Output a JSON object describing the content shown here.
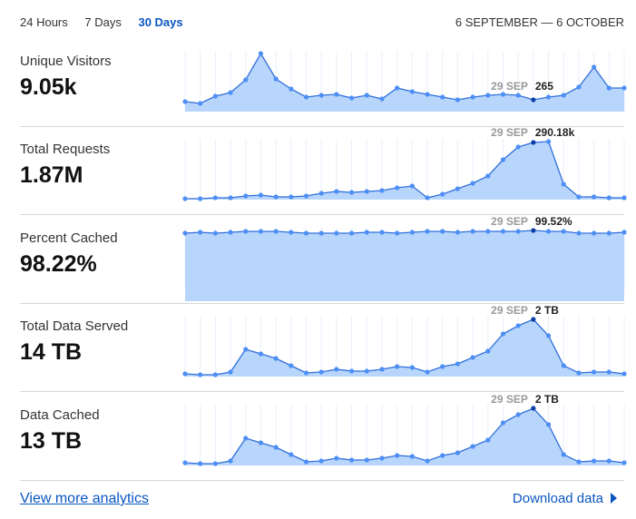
{
  "tabs": [
    {
      "label": "24 Hours"
    },
    {
      "label": "7 Days"
    },
    {
      "label": "30 Days",
      "active": true
    }
  ],
  "date_range": "6 SEPTEMBER — 6 OCTOBER",
  "colors": {
    "accent": "#0a56c2",
    "line": "#2f6fdb",
    "point": "#4d8ff5",
    "fill": "#b8d5fb",
    "highlight": "#0a3fa8"
  },
  "chart_data": [
    {
      "type": "area",
      "title": "Unique Visitors",
      "total": "9.05k",
      "highlight_index": 23,
      "tooltip_date": "29 SEP",
      "tooltip_value": "265",
      "ylim": [
        0,
        70
      ],
      "values": [
        11,
        9,
        17,
        21,
        35,
        64,
        36,
        25,
        16,
        18,
        19,
        15,
        18,
        14,
        26,
        22,
        19,
        16,
        13,
        16,
        18,
        19,
        18,
        13,
        16,
        18,
        27,
        49,
        26,
        26
      ]
    },
    {
      "type": "area",
      "title": "Total Requests",
      "total": "1.87M",
      "highlight_index": 23,
      "tooltip_date": "29 SEP",
      "tooltip_value": "290.18k",
      "ylim": [
        0,
        70
      ],
      "values": [
        1,
        1,
        2,
        2,
        4,
        5,
        3,
        3,
        4,
        7,
        9,
        8,
        9,
        10,
        13,
        15,
        2,
        6,
        12,
        18,
        26,
        44,
        58,
        63,
        64,
        17,
        3,
        3,
        2,
        2
      ]
    },
    {
      "type": "area",
      "title": "Percent Cached",
      "total": "98.22%",
      "highlight_index": 23,
      "tooltip_date": "29 SEP",
      "tooltip_value": "99.52%",
      "ylim": [
        0,
        70
      ],
      "fill_full": true,
      "values": [
        61,
        62,
        61,
        62,
        63,
        63,
        63,
        62,
        61,
        61,
        61,
        61,
        62,
        62,
        61,
        62,
        63,
        63,
        62,
        63,
        63,
        63,
        63,
        64,
        63,
        63,
        61,
        61,
        61,
        62
      ]
    },
    {
      "type": "area",
      "title": "Total Data Served",
      "total": "14 TB",
      "highlight_index": 23,
      "tooltip_date": "29 SEP",
      "tooltip_value": "2 TB",
      "ylim": [
        0,
        70
      ],
      "values": [
        3,
        2,
        2,
        5,
        30,
        25,
        20,
        12,
        4,
        5,
        8,
        6,
        6,
        8,
        11,
        10,
        5,
        11,
        14,
        21,
        28,
        47,
        56,
        63,
        45,
        12,
        4,
        5,
        5,
        3
      ]
    },
    {
      "type": "area",
      "title": "Data Cached",
      "total": "13 TB",
      "highlight_index": 23,
      "tooltip_date": "29 SEP",
      "tooltip_value": "2 TB",
      "ylim": [
        0,
        70
      ],
      "values": [
        3,
        2,
        2,
        5,
        30,
        25,
        20,
        12,
        4,
        5,
        8,
        6,
        6,
        8,
        11,
        10,
        5,
        11,
        14,
        21,
        28,
        47,
        56,
        63,
        45,
        12,
        4,
        5,
        5,
        3
      ]
    }
  ],
  "footer": {
    "more_link": "View more analytics",
    "download": "Download data"
  }
}
